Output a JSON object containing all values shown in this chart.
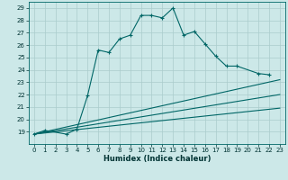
{
  "title": "",
  "xlabel": "Humidex (Indice chaleur)",
  "bg_color": "#cce8e8",
  "grid_color": "#aacccc",
  "line_color": "#006666",
  "xlim": [
    -0.5,
    23.5
  ],
  "ylim": [
    18,
    29.5
  ],
  "xticks": [
    0,
    1,
    2,
    3,
    4,
    5,
    6,
    7,
    8,
    9,
    10,
    11,
    12,
    13,
    14,
    15,
    16,
    17,
    18,
    19,
    20,
    21,
    22,
    23
  ],
  "yticks": [
    19,
    20,
    21,
    22,
    23,
    24,
    25,
    26,
    27,
    28,
    29
  ],
  "ytick_labels": [
    "19",
    "20",
    "21",
    "22",
    "23",
    "24",
    "25",
    "26",
    "27",
    "28",
    "29"
  ],
  "series_main": {
    "x": [
      0,
      1,
      3,
      4,
      5,
      6,
      7,
      8,
      9,
      10,
      11,
      12,
      13,
      14,
      15,
      16,
      17,
      18,
      19,
      21,
      22
    ],
    "y": [
      18.8,
      19.1,
      18.8,
      19.2,
      21.9,
      25.6,
      25.4,
      26.5,
      26.8,
      28.4,
      28.4,
      28.2,
      29.0,
      26.8,
      27.1,
      26.1,
      25.1,
      24.3,
      24.3,
      23.7,
      23.6
    ]
  },
  "series_lines": [
    {
      "x": [
        0,
        23
      ],
      "y": [
        18.8,
        23.2
      ]
    },
    {
      "x": [
        0,
        23
      ],
      "y": [
        18.8,
        22.0
      ]
    },
    {
      "x": [
        0,
        23
      ],
      "y": [
        18.8,
        20.9
      ]
    }
  ]
}
